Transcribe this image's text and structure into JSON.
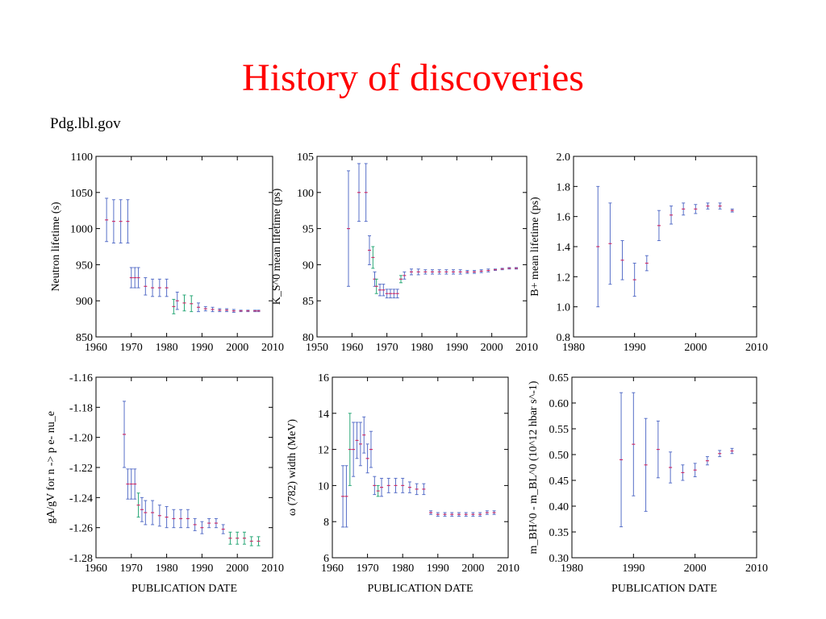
{
  "title": "History of discoveries",
  "source": "Pdg.lbl.gov",
  "colors": {
    "title": "#ff0000",
    "errorbar": "#5870c8",
    "alt_errorbar": "#2aa878",
    "central": "#d0306a"
  },
  "chart_data": [
    {
      "type": "scatter",
      "ylabel": "Neutron lifetime (s)",
      "xlabel": "",
      "xlim": [
        1960,
        2010
      ],
      "ylim": [
        850,
        1100
      ],
      "xticks": [
        "1960",
        "1970",
        "1980",
        "1990",
        "2000",
        "2010"
      ],
      "yticks": [
        "850",
        "900",
        "950",
        "1000",
        "1050",
        "1100"
      ],
      "points": [
        {
          "x": 1963,
          "y": 1012,
          "err": 30,
          "c": "b"
        },
        {
          "x": 1965,
          "y": 1010,
          "err": 30,
          "c": "b"
        },
        {
          "x": 1967,
          "y": 1010,
          "err": 30,
          "c": "b"
        },
        {
          "x": 1969,
          "y": 1010,
          "err": 30,
          "c": "b"
        },
        {
          "x": 1970,
          "y": 932,
          "err": 14,
          "c": "b"
        },
        {
          "x": 1971,
          "y": 932,
          "err": 14,
          "c": "b"
        },
        {
          "x": 1972,
          "y": 932,
          "err": 14,
          "c": "b"
        },
        {
          "x": 1974,
          "y": 920,
          "err": 12,
          "c": "b"
        },
        {
          "x": 1976,
          "y": 918,
          "err": 12,
          "c": "b"
        },
        {
          "x": 1978,
          "y": 918,
          "err": 12,
          "c": "b"
        },
        {
          "x": 1980,
          "y": 918,
          "err": 12,
          "c": "b"
        },
        {
          "x": 1982,
          "y": 892,
          "err": 10,
          "c": "g"
        },
        {
          "x": 1983,
          "y": 900,
          "err": 12,
          "c": "b"
        },
        {
          "x": 1985,
          "y": 897,
          "err": 11,
          "c": "g"
        },
        {
          "x": 1987,
          "y": 896,
          "err": 11,
          "c": "g"
        },
        {
          "x": 1989,
          "y": 891,
          "err": 6,
          "c": "b"
        },
        {
          "x": 1991,
          "y": 889,
          "err": 3,
          "c": "b"
        },
        {
          "x": 1993,
          "y": 888,
          "err": 3,
          "c": "b"
        },
        {
          "x": 1995,
          "y": 887,
          "err": 2,
          "c": "b"
        },
        {
          "x": 1997,
          "y": 887,
          "err": 2,
          "c": "b"
        },
        {
          "x": 1999,
          "y": 886,
          "err": 2,
          "c": "b"
        },
        {
          "x": 2001,
          "y": 886,
          "err": 1,
          "c": "b"
        },
        {
          "x": 2003,
          "y": 886,
          "err": 1,
          "c": "b"
        },
        {
          "x": 2005,
          "y": 886,
          "err": 1,
          "c": "b"
        },
        {
          "x": 2006,
          "y": 886,
          "err": 1,
          "c": "b"
        }
      ]
    },
    {
      "type": "scatter",
      "ylabel_html": "K<sub>S</sub><sup>0</sup> mean lifetime (ps)",
      "ylabel": "K_S^0  mean lifetime (ps)",
      "xlabel": "",
      "xlim": [
        1950,
        2010
      ],
      "ylim": [
        80,
        105
      ],
      "xticks": [
        "1950",
        "1960",
        "1970",
        "1980",
        "1990",
        "2000",
        "2010"
      ],
      "yticks": [
        "80",
        "85",
        "90",
        "95",
        "100",
        "105"
      ],
      "points": [
        {
          "x": 1959,
          "y": 95,
          "err": 8,
          "c": "b"
        },
        {
          "x": 1962,
          "y": 100,
          "err": 4,
          "c": "b"
        },
        {
          "x": 1964,
          "y": 100,
          "err": 4,
          "c": "b"
        },
        {
          "x": 1965,
          "y": 92,
          "err": 2,
          "c": "b"
        },
        {
          "x": 1966,
          "y": 91,
          "err": 1.5,
          "c": "g"
        },
        {
          "x": 1966.5,
          "y": 88,
          "err": 1,
          "c": "b"
        },
        {
          "x": 1967,
          "y": 87,
          "err": 1,
          "c": "g"
        },
        {
          "x": 1968,
          "y": 86.5,
          "err": 0.8,
          "c": "b"
        },
        {
          "x": 1969,
          "y": 86.5,
          "err": 0.8,
          "c": "b"
        },
        {
          "x": 1970,
          "y": 86,
          "err": 0.6,
          "c": "b"
        },
        {
          "x": 1971,
          "y": 86,
          "err": 0.6,
          "c": "b"
        },
        {
          "x": 1972,
          "y": 86,
          "err": 0.6,
          "c": "b"
        },
        {
          "x": 1973,
          "y": 86,
          "err": 0.6,
          "c": "b"
        },
        {
          "x": 1974,
          "y": 88,
          "err": 0.5,
          "c": "g"
        },
        {
          "x": 1975,
          "y": 88.5,
          "err": 0.5,
          "c": "b"
        },
        {
          "x": 1977,
          "y": 89,
          "err": 0.4,
          "c": "b"
        },
        {
          "x": 1979,
          "y": 89,
          "err": 0.4,
          "c": "b"
        },
        {
          "x": 1981,
          "y": 89,
          "err": 0.3,
          "c": "b"
        },
        {
          "x": 1983,
          "y": 89,
          "err": 0.3,
          "c": "b"
        },
        {
          "x": 1985,
          "y": 89,
          "err": 0.3,
          "c": "b"
        },
        {
          "x": 1987,
          "y": 89,
          "err": 0.3,
          "c": "b"
        },
        {
          "x": 1989,
          "y": 89,
          "err": 0.3,
          "c": "b"
        },
        {
          "x": 1991,
          "y": 89,
          "err": 0.3,
          "c": "b"
        },
        {
          "x": 1993,
          "y": 89,
          "err": 0.2,
          "c": "b"
        },
        {
          "x": 1995,
          "y": 89,
          "err": 0.2,
          "c": "b"
        },
        {
          "x": 1997,
          "y": 89.1,
          "err": 0.2,
          "c": "b"
        },
        {
          "x": 1999,
          "y": 89.2,
          "err": 0.2,
          "c": "b"
        },
        {
          "x": 2001,
          "y": 89.3,
          "err": 0.1,
          "c": "b"
        },
        {
          "x": 2003,
          "y": 89.4,
          "err": 0.1,
          "c": "b"
        },
        {
          "x": 2005,
          "y": 89.5,
          "err": 0.1,
          "c": "b"
        },
        {
          "x": 2007,
          "y": 89.5,
          "err": 0.1,
          "c": "b"
        }
      ]
    },
    {
      "type": "scatter",
      "ylabel_html": "B<sup>+</sup> mean lifetime (ps)",
      "ylabel": "B+ mean lifetime (ps)",
      "xlabel": "",
      "xlim": [
        1980,
        2010
      ],
      "ylim": [
        0.8,
        2.0
      ],
      "xticks": [
        "1980",
        "1990",
        "2000",
        "2010"
      ],
      "yticks": [
        "0.8",
        "1.0",
        "1.2",
        "1.4",
        "1.6",
        "1.8",
        "2.0"
      ],
      "points": [
        {
          "x": 1984,
          "y": 1.4,
          "err": 0.4,
          "c": "b"
        },
        {
          "x": 1986,
          "y": 1.42,
          "err": 0.27,
          "c": "b"
        },
        {
          "x": 1988,
          "y": 1.31,
          "err": 0.13,
          "c": "b"
        },
        {
          "x": 1990,
          "y": 1.18,
          "err": 0.11,
          "c": "b"
        },
        {
          "x": 1992,
          "y": 1.29,
          "err": 0.05,
          "c": "b"
        },
        {
          "x": 1994,
          "y": 1.54,
          "err": 0.1,
          "c": "b"
        },
        {
          "x": 1996,
          "y": 1.61,
          "err": 0.06,
          "c": "b"
        },
        {
          "x": 1998,
          "y": 1.65,
          "err": 0.04,
          "c": "b"
        },
        {
          "x": 2000,
          "y": 1.65,
          "err": 0.03,
          "c": "b"
        },
        {
          "x": 2002,
          "y": 1.67,
          "err": 0.02,
          "c": "b"
        },
        {
          "x": 2004,
          "y": 1.67,
          "err": 0.02,
          "c": "b"
        },
        {
          "x": 2006,
          "y": 1.64,
          "err": 0.01,
          "c": "b"
        }
      ]
    },
    {
      "type": "scatter",
      "ylabel_html": "g<sub>A</sub>/g<sub>V</sub> for n → pe<sup>−</sup>ν<sub>e</sub>",
      "ylabel": "gA/gV for n -> p e- nu_e",
      "xlabel": "PUBLICATION DATE",
      "xlim": [
        1960,
        2010
      ],
      "ylim": [
        -1.28,
        -1.16
      ],
      "xticks": [
        "1960",
        "1970",
        "1980",
        "1990",
        "2000",
        "2010"
      ],
      "yticks": [
        "-1.16",
        "-1.18",
        "-1.20",
        "-1.22",
        "-1.24",
        "-1.26",
        "-1.28"
      ],
      "points": [
        {
          "x": 1968,
          "y": -1.198,
          "err": 0.022,
          "c": "b"
        },
        {
          "x": 1969,
          "y": -1.231,
          "err": 0.01,
          "c": "b"
        },
        {
          "x": 1970,
          "y": -1.231,
          "err": 0.01,
          "c": "b"
        },
        {
          "x": 1971,
          "y": -1.231,
          "err": 0.01,
          "c": "b"
        },
        {
          "x": 1972,
          "y": -1.245,
          "err": 0.008,
          "c": "g"
        },
        {
          "x": 1973,
          "y": -1.248,
          "err": 0.008,
          "c": "b"
        },
        {
          "x": 1974,
          "y": -1.25,
          "err": 0.008,
          "c": "b"
        },
        {
          "x": 1976,
          "y": -1.25,
          "err": 0.008,
          "c": "b"
        },
        {
          "x": 1978,
          "y": -1.252,
          "err": 0.007,
          "c": "b"
        },
        {
          "x": 1980,
          "y": -1.253,
          "err": 0.007,
          "c": "b"
        },
        {
          "x": 1982,
          "y": -1.254,
          "err": 0.006,
          "c": "b"
        },
        {
          "x": 1984,
          "y": -1.254,
          "err": 0.006,
          "c": "b"
        },
        {
          "x": 1986,
          "y": -1.254,
          "err": 0.006,
          "c": "b"
        },
        {
          "x": 1988,
          "y": -1.258,
          "err": 0.004,
          "c": "b"
        },
        {
          "x": 1990,
          "y": -1.26,
          "err": 0.004,
          "c": "b"
        },
        {
          "x": 1992,
          "y": -1.257,
          "err": 0.003,
          "c": "b"
        },
        {
          "x": 1994,
          "y": -1.257,
          "err": 0.003,
          "c": "b"
        },
        {
          "x": 1996,
          "y": -1.261,
          "err": 0.003,
          "c": "b"
        },
        {
          "x": 1998,
          "y": -1.267,
          "err": 0.004,
          "c": "g"
        },
        {
          "x": 2000,
          "y": -1.267,
          "err": 0.004,
          "c": "g"
        },
        {
          "x": 2002,
          "y": -1.267,
          "err": 0.004,
          "c": "g"
        },
        {
          "x": 2004,
          "y": -1.269,
          "err": 0.003,
          "c": "g"
        },
        {
          "x": 2006,
          "y": -1.269,
          "err": 0.003,
          "c": "g"
        }
      ]
    },
    {
      "type": "scatter",
      "ylabel": "ω (782) width (MeV)",
      "xlabel": "PUBLICATION DATE",
      "xlim": [
        1960,
        2010
      ],
      "ylim": [
        6,
        16
      ],
      "xticks": [
        "1960",
        "1970",
        "1980",
        "1990",
        "2000",
        "2010"
      ],
      "yticks": [
        "6",
        "8",
        "10",
        "12",
        "14",
        "16"
      ],
      "points": [
        {
          "x": 1963,
          "y": 9.4,
          "err": 1.7,
          "c": "b"
        },
        {
          "x": 1964,
          "y": 9.4,
          "err": 1.7,
          "c": "b"
        },
        {
          "x": 1965,
          "y": 12.0,
          "err": 2.0,
          "c": "g"
        },
        {
          "x": 1966,
          "y": 12.0,
          "err": 1.5,
          "c": "b"
        },
        {
          "x": 1967,
          "y": 12.5,
          "err": 1.0,
          "c": "b"
        },
        {
          "x": 1968,
          "y": 12.3,
          "err": 1.2,
          "c": "b"
        },
        {
          "x": 1969,
          "y": 12.8,
          "err": 1.0,
          "c": "b"
        },
        {
          "x": 1970,
          "y": 11.5,
          "err": 0.8,
          "c": "b"
        },
        {
          "x": 1971,
          "y": 12.0,
          "err": 1.0,
          "c": "b"
        },
        {
          "x": 1972,
          "y": 10.0,
          "err": 0.5,
          "c": "b"
        },
        {
          "x": 1973,
          "y": 9.7,
          "err": 0.3,
          "c": "g"
        },
        {
          "x": 1974,
          "y": 9.9,
          "err": 0.5,
          "c": "b"
        },
        {
          "x": 1976,
          "y": 10.0,
          "err": 0.4,
          "c": "b"
        },
        {
          "x": 1978,
          "y": 10.0,
          "err": 0.4,
          "c": "b"
        },
        {
          "x": 1980,
          "y": 10.0,
          "err": 0.4,
          "c": "b"
        },
        {
          "x": 1982,
          "y": 9.9,
          "err": 0.3,
          "c": "b"
        },
        {
          "x": 1984,
          "y": 9.8,
          "err": 0.3,
          "c": "b"
        },
        {
          "x": 1986,
          "y": 9.8,
          "err": 0.3,
          "c": "b"
        },
        {
          "x": 1988,
          "y": 8.5,
          "err": 0.1,
          "c": "b"
        },
        {
          "x": 1990,
          "y": 8.4,
          "err": 0.1,
          "c": "b"
        },
        {
          "x": 1992,
          "y": 8.4,
          "err": 0.1,
          "c": "b"
        },
        {
          "x": 1994,
          "y": 8.4,
          "err": 0.1,
          "c": "b"
        },
        {
          "x": 1996,
          "y": 8.4,
          "err": 0.1,
          "c": "b"
        },
        {
          "x": 1998,
          "y": 8.4,
          "err": 0.1,
          "c": "b"
        },
        {
          "x": 2000,
          "y": 8.4,
          "err": 0.1,
          "c": "b"
        },
        {
          "x": 2002,
          "y": 8.4,
          "err": 0.1,
          "c": "b"
        },
        {
          "x": 2004,
          "y": 8.5,
          "err": 0.1,
          "c": "b"
        },
        {
          "x": 2006,
          "y": 8.5,
          "err": 0.1,
          "c": "b"
        }
      ]
    },
    {
      "type": "scatter",
      "ylabel_html": "m<sub>B<tspan font-size='8'>H</tspan></sub><sup>0</sup>−m<sub>B<tspan font-size='8'>L</tspan></sub><sup>0</sup>  (10<sup>12</sup> ħ s<sup>−1</sup>)",
      "ylabel": "m_BH^0 - m_BL^0  (10^12 hbar s^-1)",
      "xlabel": "PUBLICATION DATE",
      "xlim": [
        1980,
        2010
      ],
      "ylim": [
        0.3,
        0.65
      ],
      "xticks": [
        "1980",
        "1990",
        "2000",
        "2010"
      ],
      "yticks": [
        "0.30",
        "0.35",
        "0.40",
        "0.45",
        "0.50",
        "0.55",
        "0.60",
        "0.65"
      ],
      "points": [
        {
          "x": 1988,
          "y": 0.49,
          "err": 0.13,
          "c": "b"
        },
        {
          "x": 1990,
          "y": 0.52,
          "err": 0.1,
          "c": "b"
        },
        {
          "x": 1992,
          "y": 0.48,
          "err": 0.09,
          "c": "b"
        },
        {
          "x": 1994,
          "y": 0.51,
          "err": 0.055,
          "c": "b"
        },
        {
          "x": 1996,
          "y": 0.475,
          "err": 0.03,
          "c": "b"
        },
        {
          "x": 1998,
          "y": 0.465,
          "err": 0.015,
          "c": "b"
        },
        {
          "x": 2000,
          "y": 0.47,
          "err": 0.013,
          "c": "b"
        },
        {
          "x": 2002,
          "y": 0.488,
          "err": 0.008,
          "c": "b"
        },
        {
          "x": 2004,
          "y": 0.502,
          "err": 0.006,
          "c": "b"
        },
        {
          "x": 2006,
          "y": 0.507,
          "err": 0.005,
          "c": "b"
        }
      ]
    }
  ]
}
